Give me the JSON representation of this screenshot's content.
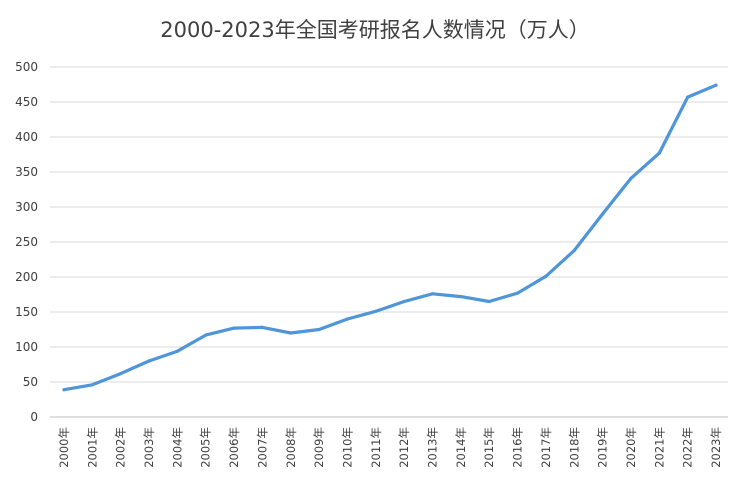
{
  "chart_data": {
    "type": "line",
    "title": "2000-2023年全国考研报名人数情况（万人）",
    "xlabel": "",
    "ylabel": "",
    "ylim": [
      0,
      500
    ],
    "yticks": [
      0,
      50,
      100,
      150,
      200,
      250,
      300,
      350,
      400,
      450,
      500
    ],
    "grid": "horizontal",
    "legend": "none",
    "categories": [
      "2000年",
      "2001年",
      "2002年",
      "2003年",
      "2004年",
      "2005年",
      "2006年",
      "2007年",
      "2008年",
      "2009年",
      "2010年",
      "2011年",
      "2012年",
      "2013年",
      "2014年",
      "2015年",
      "2016年",
      "2017年",
      "2018年",
      "2019年",
      "2020年",
      "2021年",
      "2022年",
      "2023年"
    ],
    "series": [
      {
        "color": "#4e95d9",
        "values": [
          39,
          46,
          62,
          80,
          94,
          117,
          127,
          128,
          120,
          125,
          140,
          151,
          165,
          176,
          172,
          165,
          177,
          201,
          238,
          290,
          341,
          377,
          457,
          474
        ]
      }
    ]
  }
}
